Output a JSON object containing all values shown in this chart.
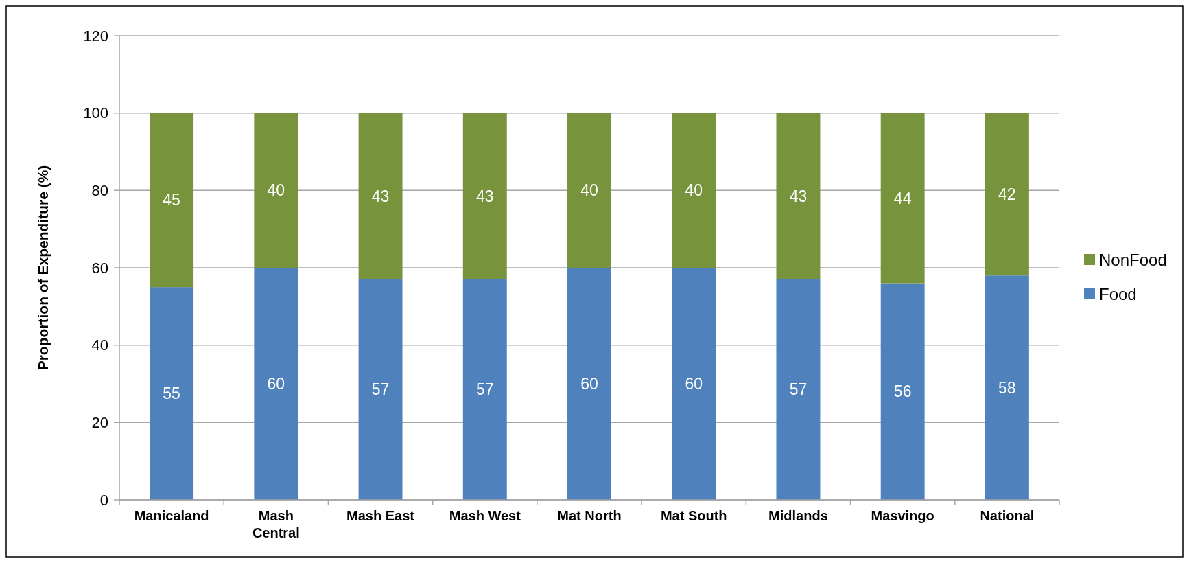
{
  "chart_data": {
    "type": "bar",
    "stacked": true,
    "ylabel": "Proportion of Expenditure (%)",
    "categories": [
      "Manicaland",
      "Mash Central",
      "Mash East",
      "Mash West",
      "Mat North",
      "Mat South",
      "Midlands",
      "Masvingo",
      "National"
    ],
    "series": [
      {
        "name": "Food",
        "color": "#4f81bd",
        "values": [
          55,
          60,
          57,
          57,
          60,
          60,
          57,
          56,
          58
        ]
      },
      {
        "name": "NonFood",
        "color": "#77933c",
        "values": [
          45,
          40,
          43,
          43,
          40,
          40,
          43,
          44,
          42
        ]
      }
    ],
    "ylim": [
      0,
      120
    ],
    "yticks": [
      0,
      20,
      40,
      60,
      80,
      100,
      120
    ],
    "grid": "y",
    "legend": "right",
    "data_labels": true
  }
}
